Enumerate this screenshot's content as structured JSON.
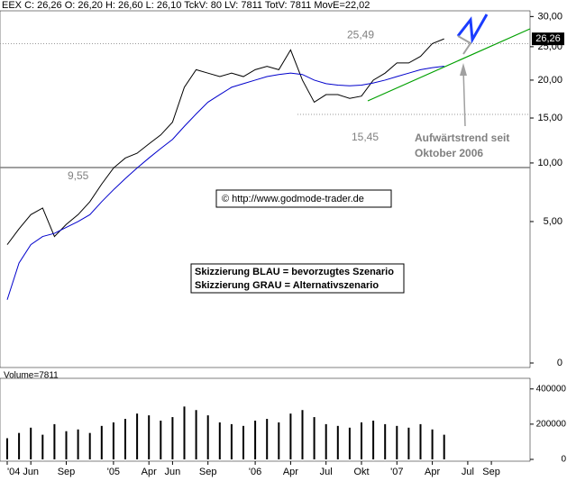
{
  "chart_data": {
    "type": "line",
    "header": "EEX C: 26,26 O: 26,20 H: 26,60 L: 26,10 TckV: 80 LV: 7811 TotV: 7811 MovE=22,02",
    "categories": [
      "'04",
      null,
      "Jun",
      null,
      null,
      "Sep",
      null,
      null,
      null,
      "'05",
      null,
      null,
      "Apr",
      null,
      "Jun",
      null,
      null,
      "Sep",
      null,
      null,
      null,
      "'06",
      null,
      null,
      "Apr",
      null,
      null,
      "Jul",
      null,
      null,
      "Okt",
      null,
      null,
      "'07",
      null,
      null,
      "Apr",
      null,
      null,
      "Jul",
      null,
      "Sep"
    ],
    "series": [
      {
        "name": "EEX",
        "color": "#000000",
        "values": [
          3.5,
          4.5,
          5.5,
          6,
          4,
          4.8,
          5.5,
          6.5,
          8,
          9.5,
          10.5,
          11,
          12,
          13,
          14.5,
          19,
          21.5,
          21,
          20.5,
          21,
          20.5,
          21.5,
          22,
          21.5,
          24.5,
          20,
          17,
          18,
          18,
          17.5,
          17.8,
          20,
          21,
          22.5,
          22.5,
          23.5,
          25.5,
          26.26,
          null,
          null,
          null,
          null
        ]
      },
      {
        "name": "MovE",
        "color": "#0000cc",
        "values": [
          1,
          2.5,
          3.5,
          4,
          4.2,
          4.6,
          5,
          5.5,
          6.5,
          7.5,
          8.5,
          9.5,
          10.5,
          11.5,
          12.5,
          14,
          15.5,
          17,
          18,
          19,
          19.5,
          20,
          20.5,
          20.8,
          21,
          20.8,
          20,
          19.5,
          19.3,
          19.2,
          19.3,
          19.6,
          20,
          20.5,
          21,
          21.5,
          21.8,
          22.02,
          null,
          null,
          null,
          null
        ]
      }
    ],
    "yscale": "sqrt",
    "ylim": [
      0,
      31
    ],
    "yticks": [
      0,
      {
        "value": 5,
        "label": "5,00"
      },
      {
        "value": 10,
        "label": "10,00"
      },
      {
        "value": 15,
        "label": "15,00"
      },
      {
        "value": 20,
        "label": "20,00"
      },
      {
        "value": 25,
        "label": "25,00"
      },
      {
        "value": 30,
        "label": "30,00"
      }
    ],
    "last": {
      "value": 26.26,
      "label": "26,26"
    },
    "levels": [
      {
        "value": 25.49,
        "label": "25,49"
      },
      {
        "value": 15.45,
        "label": "15,45"
      },
      {
        "value": 9.55,
        "label": "9,55"
      }
    ],
    "annotations": [
      "Aufwärtstrend seit",
      "Oktober 2006",
      "© http://www.godmode-trader.de",
      "Skizzierung BLAU = bevorzugtes Szenario",
      "Skizzierung GRAU = Alternativszenario"
    ],
    "volume": {
      "label": "Volume=7811",
      "color": "#000000",
      "values": [
        120000,
        150000,
        180000,
        140000,
        200000,
        160000,
        170000,
        150000,
        190000,
        210000,
        230000,
        260000,
        250000,
        220000,
        240000,
        300000,
        280000,
        250000,
        210000,
        200000,
        190000,
        220000,
        230000,
        210000,
        260000,
        280000,
        240000,
        200000,
        190000,
        180000,
        210000,
        220000,
        200000,
        190000,
        180000,
        200000,
        170000,
        140000,
        null,
        null,
        null,
        null
      ],
      "ylim": [
        0,
        450000
      ],
      "yticks": [
        0,
        200000,
        400000
      ]
    }
  }
}
